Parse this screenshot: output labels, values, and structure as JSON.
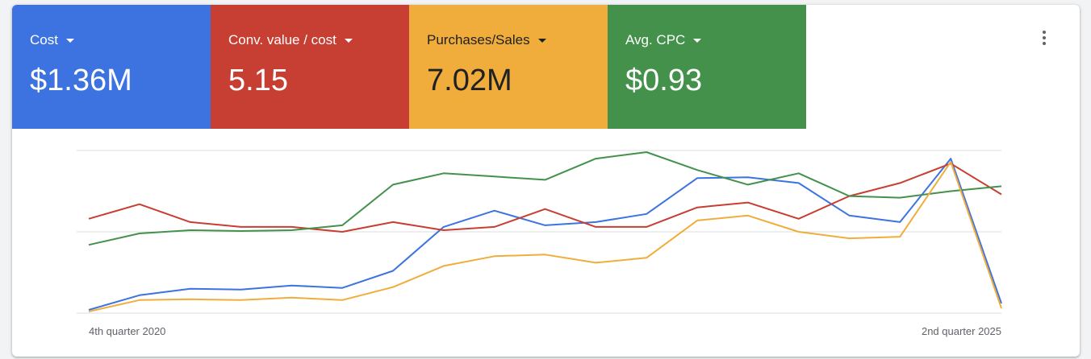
{
  "scorecards": [
    {
      "label": "Cost",
      "value": "$1.36M",
      "color": "#3c73e0"
    },
    {
      "label": "Conv. value / cost",
      "value": "5.15",
      "color": "#c73e32"
    },
    {
      "label": "Purchases/Sales",
      "value": "7.02M",
      "color": "#f0ad3c"
    },
    {
      "label": "Avg. CPC",
      "value": "$0.93",
      "color": "#43914a"
    }
  ],
  "menu_icon": "more-vert-icon",
  "chart_data": {
    "type": "line",
    "title": "",
    "xlabel": "",
    "ylabel": "",
    "x_tick_labels": [
      "4th quarter 2020",
      "2nd quarter 2025"
    ],
    "ylim": [
      0,
      100
    ],
    "y_axis_labels_shown": false,
    "grid": true,
    "normalized_per_series": true,
    "x": [
      1,
      2,
      3,
      4,
      5,
      6,
      7,
      8,
      9,
      10,
      11,
      12,
      13,
      14,
      15,
      16,
      17,
      18,
      19
    ],
    "series": [
      {
        "color": "#3c73e0",
        "values": [
          2,
          11,
          15,
          14.5,
          17,
          15.5,
          26,
          53,
          63,
          54,
          56,
          61,
          83,
          83.5,
          80,
          60,
          56,
          95,
          6
        ]
      },
      {
        "color": "#c73e32",
        "values": [
          58,
          67,
          56,
          53,
          53,
          50,
          56,
          51,
          53,
          64,
          53,
          53,
          65,
          68,
          58,
          72,
          80,
          92,
          73
        ]
      },
      {
        "color": "#43914a",
        "values": [
          42,
          49,
          51,
          50.5,
          51,
          54,
          79,
          86,
          84,
          82,
          95,
          99,
          88,
          79,
          86,
          72,
          71,
          75,
          78
        ]
      },
      {
        "color": "#f0ad3c",
        "values": [
          1,
          8,
          8.5,
          8,
          9.5,
          8,
          16,
          29,
          35,
          36,
          31,
          34,
          57,
          60,
          50,
          46,
          47,
          93,
          3
        ]
      }
    ]
  }
}
